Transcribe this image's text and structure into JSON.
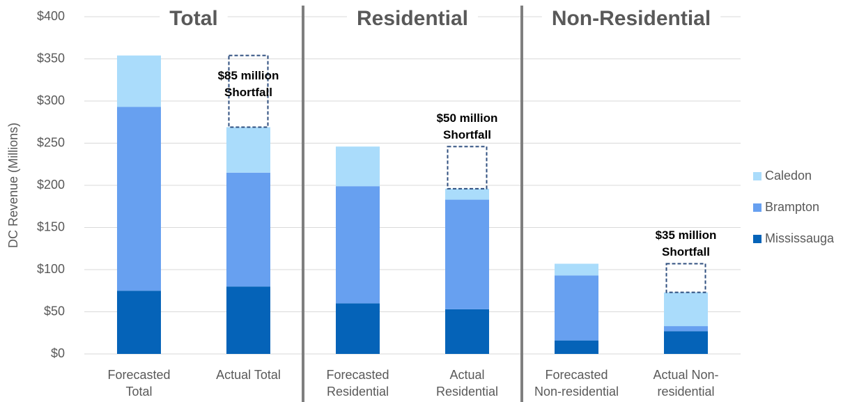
{
  "chart_data": {
    "type": "stacked_bar",
    "y_label": "DC Revenue (Millions)",
    "categories": [
      "Forecasted\nTotal",
      "Actual Total",
      "Forecasted\nResidential",
      "Actual\nResidential",
      "Forecasted\nNon-residential",
      "Actual Non-\nresidential"
    ],
    "sections": [
      "Total",
      "Residential",
      "Non-Residential"
    ],
    "series": [
      {
        "name": "Mississauga",
        "color": "#0563b8",
        "values": [
          75,
          80,
          60,
          53,
          16,
          27
        ]
      },
      {
        "name": "Brampton",
        "color": "#67a0f0",
        "values": [
          218,
          135,
          139,
          130,
          77,
          6
        ]
      },
      {
        "name": "Caledon",
        "color": "#aadcfb",
        "values": [
          61,
          54,
          47,
          13,
          14,
          40
        ]
      }
    ],
    "annotations": [
      {
        "for": "Actual Total",
        "lines": [
          "$85 million",
          "Shortfall"
        ]
      },
      {
        "for": "Actual\nResidential",
        "lines": [
          "$50 million",
          "Shortfall"
        ]
      },
      {
        "for": "Actual Non-\nresidential",
        "lines": [
          "$35 million",
          "Shortfall"
        ]
      }
    ],
    "ylim": [
      0,
      400
    ],
    "yticks": [
      {
        "value": 0,
        "label": "$0"
      },
      {
        "value": 50,
        "label": "$50"
      },
      {
        "value": 100,
        "label": "$100"
      },
      {
        "value": 150,
        "label": "$150"
      },
      {
        "value": 200,
        "label": "$200"
      },
      {
        "value": 250,
        "label": "$250"
      },
      {
        "value": 300,
        "label": "$300"
      },
      {
        "value": 350,
        "label": "$350"
      },
      {
        "value": 400,
        "label": "$400"
      }
    ],
    "grid": true,
    "legend": "right"
  }
}
